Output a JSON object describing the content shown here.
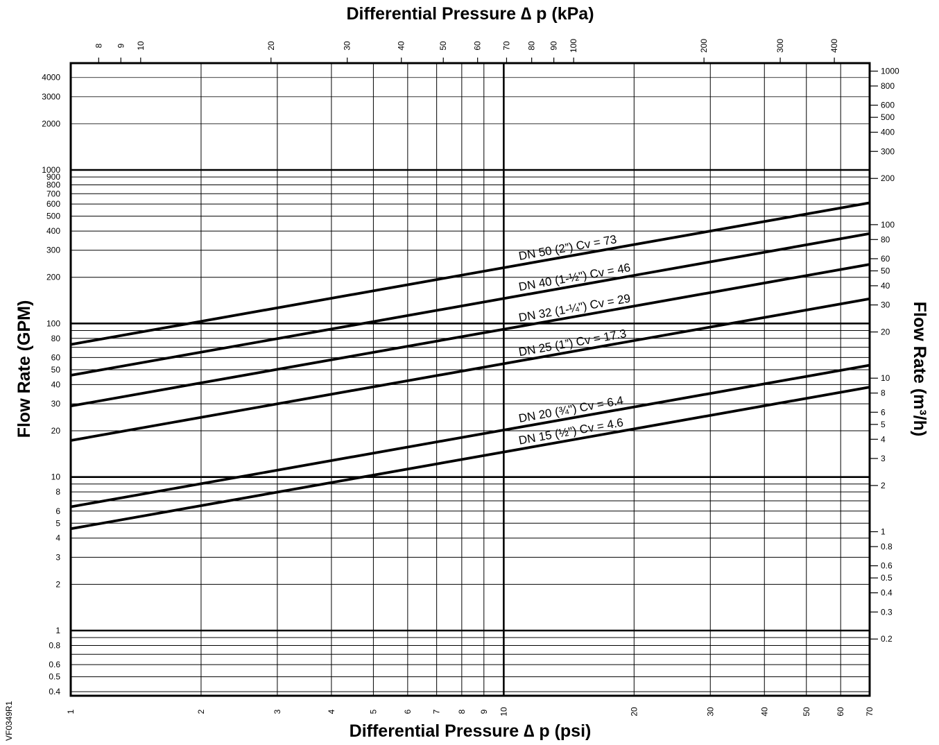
{
  "chart_data": {
    "type": "line",
    "scale": "log-log",
    "grid": true,
    "code": "VF0349R1",
    "x_bottom": {
      "label": "Differential Pressure ∆ p (psi)",
      "range": [
        1,
        70
      ],
      "ticks": [
        {
          "value": 1,
          "label": "1"
        },
        {
          "value": 2,
          "label": "2"
        },
        {
          "value": 3,
          "label": "3"
        },
        {
          "value": 4,
          "label": "4"
        },
        {
          "value": 5,
          "label": "5"
        },
        {
          "value": 6,
          "label": "6"
        },
        {
          "value": 7,
          "label": "7"
        },
        {
          "value": 8,
          "label": "8"
        },
        {
          "value": 9,
          "label": "9"
        },
        {
          "value": 10,
          "label": "10"
        },
        {
          "value": 20,
          "label": "20"
        },
        {
          "value": 30,
          "label": "30"
        },
        {
          "value": 40,
          "label": "40"
        },
        {
          "value": 50,
          "label": "50"
        },
        {
          "value": 60,
          "label": "60"
        },
        {
          "value": 70,
          "label": "70"
        }
      ]
    },
    "x_top": {
      "label": "Differential Pressure ∆ p (kPa)",
      "ticks": [
        {
          "value": 8,
          "label": "8"
        },
        {
          "value": 9,
          "label": "9"
        },
        {
          "value": 10,
          "label": "10"
        },
        {
          "value": 20,
          "label": "20"
        },
        {
          "value": 30,
          "label": "30"
        },
        {
          "value": 40,
          "label": "40"
        },
        {
          "value": 50,
          "label": "50"
        },
        {
          "value": 60,
          "label": "60"
        },
        {
          "value": 70,
          "label": "70"
        },
        {
          "value": 80,
          "label": "80"
        },
        {
          "value": 90,
          "label": "90"
        },
        {
          "value": 100,
          "label": "100"
        },
        {
          "value": 200,
          "label": "200"
        },
        {
          "value": 300,
          "label": "300"
        },
        {
          "value": 400,
          "label": "400"
        }
      ]
    },
    "y_left": {
      "label": "Flow Rate (GPM)",
      "range": [
        0.4,
        4000
      ],
      "ticks": [
        {
          "value": 0.4,
          "label": "0.4"
        },
        {
          "value": 0.5,
          "label": "0.5"
        },
        {
          "value": 0.6,
          "label": "0.6"
        },
        {
          "value": 0.8,
          "label": "0.8"
        },
        {
          "value": 1,
          "label": "1"
        },
        {
          "value": 2,
          "label": "2"
        },
        {
          "value": 3,
          "label": "3"
        },
        {
          "value": 4,
          "label": "4"
        },
        {
          "value": 5,
          "label": "5"
        },
        {
          "value": 6,
          "label": "6"
        },
        {
          "value": 8,
          "label": "8"
        },
        {
          "value": 10,
          "label": "10"
        },
        {
          "value": 20,
          "label": "20"
        },
        {
          "value": 30,
          "label": "30"
        },
        {
          "value": 40,
          "label": "40"
        },
        {
          "value": 50,
          "label": "50"
        },
        {
          "value": 60,
          "label": "60"
        },
        {
          "value": 80,
          "label": "80"
        },
        {
          "value": 100,
          "label": "100"
        },
        {
          "value": 200,
          "label": "200"
        },
        {
          "value": 300,
          "label": "300"
        },
        {
          "value": 400,
          "label": "400"
        },
        {
          "value": 500,
          "label": "500"
        },
        {
          "value": 600,
          "label": "600"
        },
        {
          "value": 700,
          "label": "700"
        },
        {
          "value": 800,
          "label": "800"
        },
        {
          "value": 900,
          "label": "900"
        },
        {
          "value": 1000,
          "label": "1000"
        },
        {
          "value": 2000,
          "label": "2000"
        },
        {
          "value": 3000,
          "label": "3000"
        },
        {
          "value": 4000,
          "label": "4000"
        }
      ]
    },
    "y_right": {
      "label": "Flow Rate (m³/h)",
      "ticks": [
        {
          "value": 0.2,
          "label": "0.2"
        },
        {
          "value": 0.3,
          "label": "0.3"
        },
        {
          "value": 0.4,
          "label": "0.4"
        },
        {
          "value": 0.5,
          "label": "0.5"
        },
        {
          "value": 0.6,
          "label": "0.6"
        },
        {
          "value": 0.8,
          "label": "0.8"
        },
        {
          "value": 1,
          "label": "1"
        },
        {
          "value": 2,
          "label": "2"
        },
        {
          "value": 3,
          "label": "3"
        },
        {
          "value": 4,
          "label": "4"
        },
        {
          "value": 5,
          "label": "5"
        },
        {
          "value": 6,
          "label": "6"
        },
        {
          "value": 8,
          "label": "8"
        },
        {
          "value": 10,
          "label": "10"
        },
        {
          "value": 20,
          "label": "20"
        },
        {
          "value": 30,
          "label": "30"
        },
        {
          "value": 40,
          "label": "40"
        },
        {
          "value": 50,
          "label": "50"
        },
        {
          "value": 60,
          "label": "60"
        },
        {
          "value": 80,
          "label": "80"
        },
        {
          "value": 100,
          "label": "100"
        },
        {
          "value": 200,
          "label": "200"
        },
        {
          "value": 300,
          "label": "300"
        },
        {
          "value": 400,
          "label": "400"
        },
        {
          "value": 500,
          "label": "500"
        },
        {
          "value": 600,
          "label": "600"
        },
        {
          "value": 800,
          "label": "800"
        },
        {
          "value": 1000,
          "label": "1000"
        }
      ]
    },
    "series": [
      {
        "name": "DN 50 (2”) Cv = 73",
        "cv": 73,
        "x": [
          1,
          70
        ],
        "y": [
          73,
          610.8
        ]
      },
      {
        "name": "DN 40 (1-½\") Cv = 46",
        "cv": 46,
        "x": [
          1,
          70
        ],
        "y": [
          46,
          384.9
        ]
      },
      {
        "name": "DN 32 (1-¼\") Cv = 29",
        "cv": 29,
        "x": [
          1,
          70
        ],
        "y": [
          29,
          242.6
        ]
      },
      {
        "name": "DN 25 (1”) Cv = 17.3",
        "cv": 17.3,
        "x": [
          1,
          70
        ],
        "y": [
          17.3,
          144.7
        ]
      },
      {
        "name": "DN 20 (¾\") Cv = 6.4",
        "cv": 6.4,
        "x": [
          1,
          70
        ],
        "y": [
          6.4,
          53.5
        ]
      },
      {
        "name": "DN 15 (½\") Cv = 4.6",
        "cv": 4.6,
        "x": [
          1,
          70
        ],
        "y": [
          4.6,
          38.5
        ]
      }
    ]
  }
}
